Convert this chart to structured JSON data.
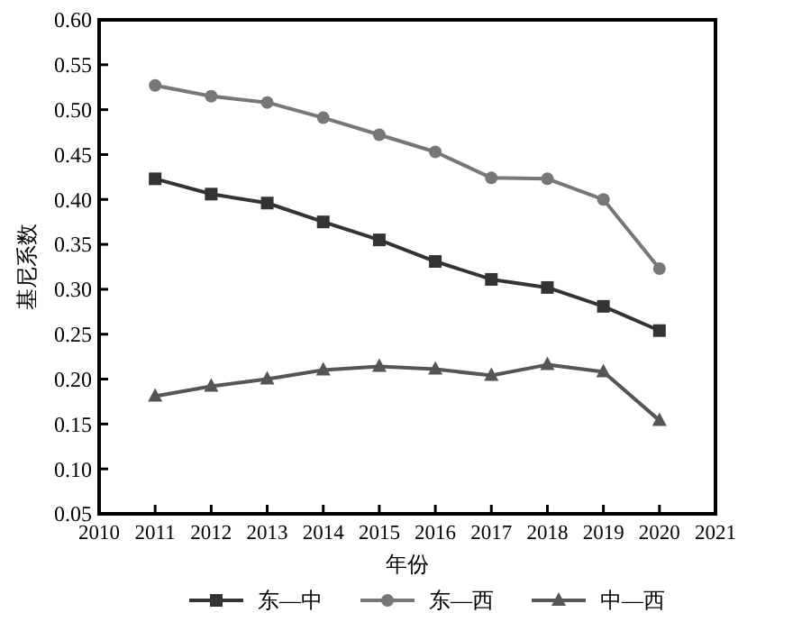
{
  "chart_data": {
    "type": "line",
    "xlabel": "年份",
    "ylabel": "基尼系数",
    "x": [
      2011,
      2012,
      2013,
      2014,
      2015,
      2016,
      2017,
      2018,
      2019,
      2020
    ],
    "xlim": [
      2010,
      2021
    ],
    "xticks": [
      2010,
      2011,
      2012,
      2013,
      2014,
      2015,
      2016,
      2017,
      2018,
      2019,
      2020,
      2021
    ],
    "ylim": [
      0.05,
      0.6
    ],
    "yticks": [
      {
        "value": 0.05,
        "label": "0.05"
      },
      {
        "value": 0.1,
        "label": "0.10"
      },
      {
        "value": 0.15,
        "label": "0.15"
      },
      {
        "value": 0.2,
        "label": "0.20"
      },
      {
        "value": 0.25,
        "label": "0.25"
      },
      {
        "value": 0.3,
        "label": "0.30"
      },
      {
        "value": 0.35,
        "label": "0.35"
      },
      {
        "value": 0.4,
        "label": "0.40"
      },
      {
        "value": 0.45,
        "label": "0.45"
      },
      {
        "value": 0.5,
        "label": "0.50"
      },
      {
        "value": 0.55,
        "label": "0.55"
      },
      {
        "value": 0.6,
        "label": "0.60"
      }
    ],
    "grid": false,
    "legend": "bottom",
    "line_style": "solid",
    "series": [
      {
        "name": "东—中",
        "color": "#333333",
        "marker": "square",
        "values": [
          0.423,
          0.406,
          0.396,
          0.375,
          0.355,
          0.331,
          0.311,
          0.302,
          0.281,
          0.254
        ]
      },
      {
        "name": "东—西",
        "color": "#777777",
        "marker": "circle",
        "values": [
          0.527,
          0.515,
          0.508,
          0.491,
          0.472,
          0.453,
          0.424,
          0.423,
          0.4,
          0.323
        ]
      },
      {
        "name": "中—西",
        "color": "#555555",
        "marker": "triangle",
        "values": [
          0.181,
          0.192,
          0.2,
          0.21,
          0.214,
          0.211,
          0.204,
          0.216,
          0.208,
          0.154
        ]
      }
    ]
  }
}
